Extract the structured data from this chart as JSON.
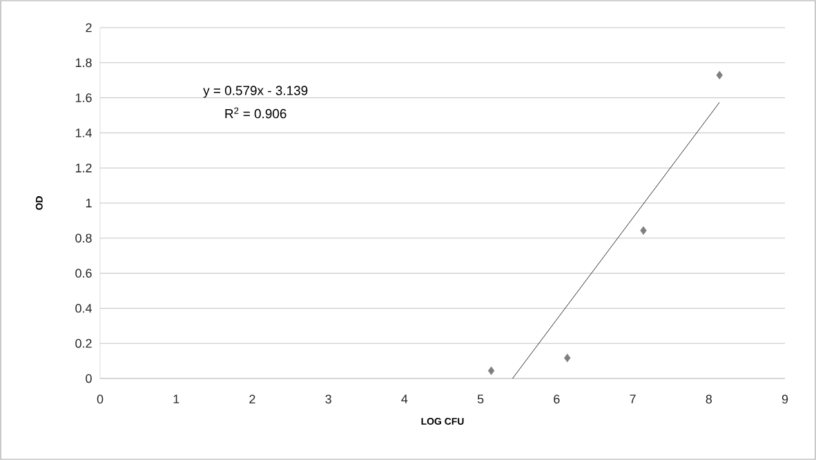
{
  "chart_data": {
    "type": "scatter",
    "xlabel": "LOG CFU",
    "ylabel": "OD",
    "xlim": [
      0,
      9
    ],
    "xticks": [
      0,
      1,
      2,
      3,
      4,
      5,
      6,
      7,
      8,
      9
    ],
    "ylim": [
      0,
      2
    ],
    "yticks": [
      0,
      0.2,
      0.4,
      0.6,
      0.8,
      1,
      1.2,
      1.4,
      1.6,
      1.8,
      2
    ],
    "grid": "y",
    "marker": "diamond",
    "annotations": [
      "y = 0.579x - 3.139",
      "R$^{2}$ = 0.906"
    ],
    "series": [
      {
        "color": "#7f7f7f",
        "x": [
          5.14,
          6.14,
          7.14,
          8.14
        ],
        "values": [
          0.044,
          0.117,
          0.843,
          1.729
        ]
      },
      {
        "type": "line",
        "color": "#000000",
        "marker": "none",
        "line_style": "solid",
        "x": [
          5.42,
          8.14
        ],
        "values": [
          0,
          1.574
        ]
      }
    ]
  }
}
